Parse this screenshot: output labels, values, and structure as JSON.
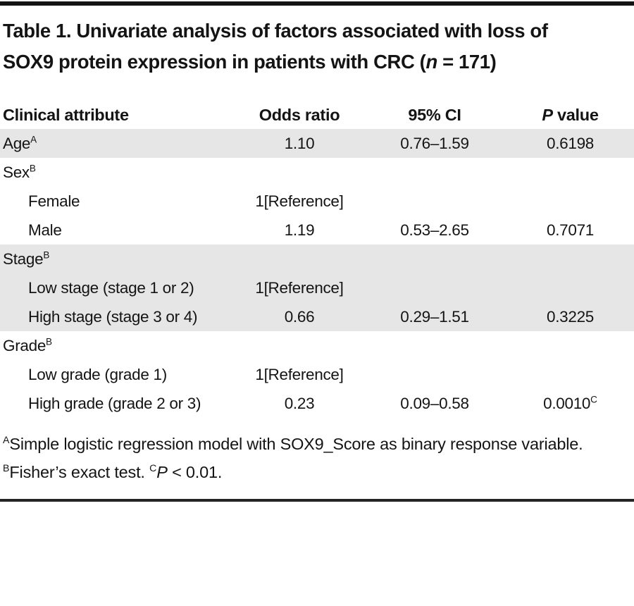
{
  "title": {
    "part1": "Table 1. Univariate analysis of factors associated with loss of SOX9 protein expression in patients with CRC (",
    "n_italic": "n",
    "part2": " = 171)"
  },
  "columns": {
    "attribute": "Clinical attribute",
    "odds_ratio": "Odds ratio",
    "ci": "95% CI",
    "p_italic": "P",
    "p_rest": " value"
  },
  "rows": [
    {
      "label": "Age",
      "sup": "A",
      "or": "1.10",
      "ci": "0.76–1.59",
      "p": "0.6198"
    },
    {
      "label": "Sex",
      "sup": "B",
      "or": "",
      "ci": "",
      "p": ""
    },
    {
      "label": "Female",
      "or": "1[Reference]",
      "ci": "",
      "p": ""
    },
    {
      "label": "Male",
      "or": "1.19",
      "ci": "0.53–2.65",
      "p": "0.7071"
    },
    {
      "label": "Stage",
      "sup": "B",
      "or": "",
      "ci": "",
      "p": ""
    },
    {
      "label": "Low stage (stage 1 or 2)",
      "or": "1[Reference]",
      "ci": "",
      "p": ""
    },
    {
      "label": "High stage (stage 3 or 4)",
      "or": "0.66",
      "ci": "0.29–1.51",
      "p": "0.3225"
    },
    {
      "label": "Grade",
      "sup": "B",
      "or": "",
      "ci": "",
      "p": ""
    },
    {
      "label": "Low grade (grade 1)",
      "or": "1[Reference]",
      "ci": "",
      "p": ""
    },
    {
      "label": "High grade (grade 2 or 3)",
      "or": "0.23",
      "ci": "0.09–0.58",
      "p": "0.0010",
      "p_sup": "C"
    }
  ],
  "footnote": {
    "sup_a": "A",
    "text_a": "Simple logistic regression model with SOX9_Score as binary response variable. ",
    "sup_b": "B",
    "text_b": "Fisher’s exact test. ",
    "sup_c": "C",
    "p_italic": "P",
    "text_c": " < 0.01."
  },
  "colors": {
    "row_shade": "#e6e6e6",
    "rule": "#141414",
    "text": "#141414"
  }
}
